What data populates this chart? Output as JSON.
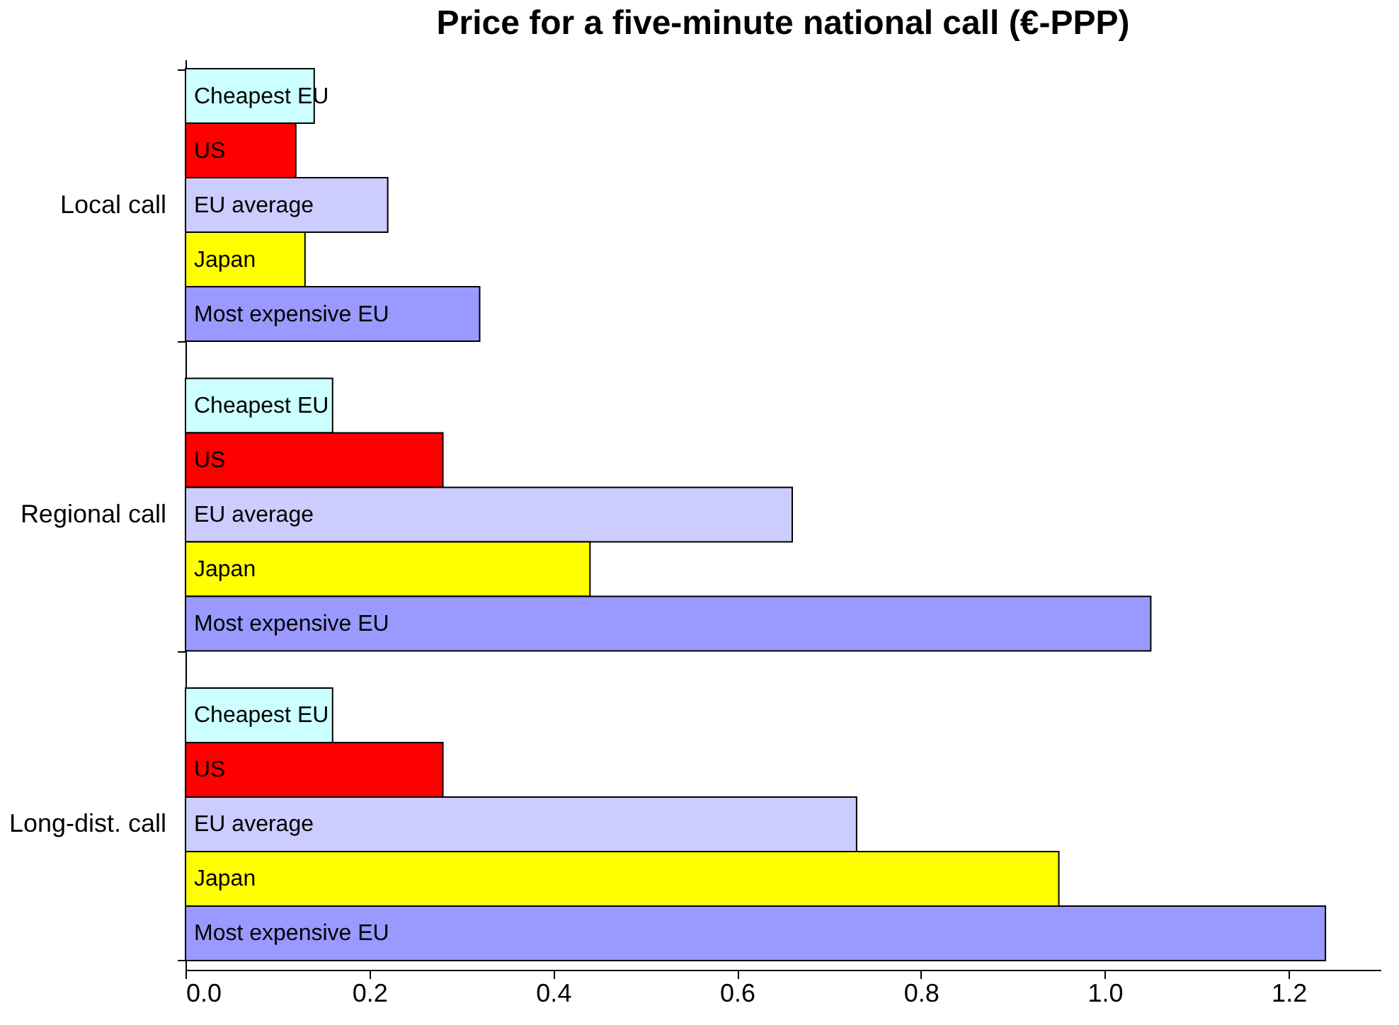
{
  "chart_data": {
    "type": "bar",
    "orientation": "horizontal",
    "title": "Price for a five-minute national call (€-PPP)",
    "categories": [
      "Local call",
      "Regional call",
      "Long-dist. call"
    ],
    "series": [
      {
        "name": "Cheapest EU",
        "color": "#ccffff",
        "values": [
          0.14,
          0.16,
          0.16
        ]
      },
      {
        "name": "US",
        "color": "#ff0000",
        "values": [
          0.12,
          0.28,
          0.28
        ]
      },
      {
        "name": "EU average",
        "color": "#ccccff",
        "values": [
          0.22,
          0.66,
          0.73
        ]
      },
      {
        "name": "Japan",
        "color": "#ffff00",
        "values": [
          0.13,
          0.44,
          0.95
        ]
      },
      {
        "name": "Most expensive EU",
        "color": "#9999ff",
        "values": [
          0.32,
          1.05,
          1.24
        ]
      }
    ],
    "xlim": [
      0,
      1.3
    ],
    "xticks": [
      {
        "value": 0,
        "label": "0.0"
      },
      {
        "value": 0.2,
        "label": "0.2"
      },
      {
        "value": 0.4,
        "label": "0.4"
      },
      {
        "value": 0.6,
        "label": "0.6"
      },
      {
        "value": 0.8,
        "label": "0.8"
      },
      {
        "value": 1.0,
        "label": "1.0"
      },
      {
        "value": 1.2,
        "label": "1.2"
      }
    ],
    "grid": false,
    "legend": false
  }
}
